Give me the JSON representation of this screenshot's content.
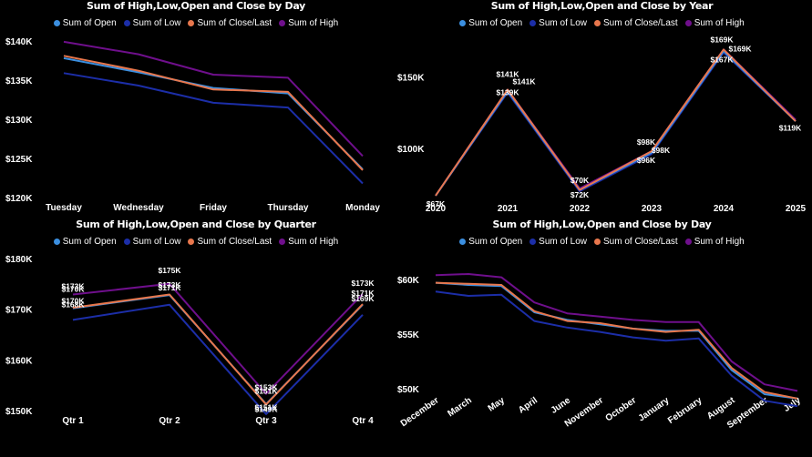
{
  "colors": {
    "open": "#3b8fe0",
    "low": "#1c2ea8",
    "close": "#e8774d",
    "high": "#6f0f8c"
  },
  "chart_data": [
    {
      "type": "line",
      "title": "Sum of High,Low,Open and Close by Day",
      "categories": [
        "Tuesday",
        "Wednesday",
        "Friday",
        "Thursday",
        "Monday"
      ],
      "y_ticks": [
        "$140K",
        "$135K",
        "$130K",
        "$125K",
        "$120K"
      ],
      "y_tick_values": [
        140000,
        135000,
        130000,
        125000,
        120000
      ],
      "ylim": [
        120000,
        140000
      ],
      "series": [
        {
          "name": "Sum of Open",
          "key": "open",
          "values": [
            137800,
            136000,
            134000,
            133300,
            123600
          ]
        },
        {
          "name": "Sum of Low",
          "key": "low",
          "values": [
            135900,
            134300,
            132100,
            131500,
            121800
          ]
        },
        {
          "name": "Sum of Close/Last",
          "key": "close",
          "values": [
            138100,
            136200,
            133800,
            133500,
            123500
          ]
        },
        {
          "name": "Sum of High",
          "key": "high",
          "values": [
            139900,
            138300,
            135700,
            135300,
            125300
          ]
        }
      ]
    },
    {
      "type": "line",
      "title": "Sum of High,Low,Open and Close by Year",
      "categories": [
        "2020",
        "2021",
        "2022",
        "2023",
        "2024",
        "2025"
      ],
      "y_ticks": [
        "$150K",
        "$100K"
      ],
      "y_tick_values": [
        150000,
        100000
      ],
      "ylim": [
        65000,
        175000
      ],
      "series": [
        {
          "name": "Sum of Open",
          "key": "open",
          "values": [
            67000,
            140000,
            71000,
            97000,
            168000,
            119000
          ]
        },
        {
          "name": "Sum of Low",
          "key": "low",
          "values": [
            67000,
            139000,
            70000,
            96000,
            167000,
            119000
          ]
        },
        {
          "name": "Sum of Close/Last",
          "key": "close",
          "values": [
            67000,
            141000,
            71000,
            98000,
            169000,
            119000
          ]
        },
        {
          "name": "Sum of High",
          "key": "high",
          "values": [
            67000,
            141000,
            72000,
            98000,
            169000,
            120000
          ]
        }
      ],
      "annotations": [
        {
          "index": 0,
          "text": "$67K",
          "dx": 0,
          "dy": 12
        },
        {
          "index": 1,
          "text": "$141K",
          "dx": 0,
          "dy": -14
        },
        {
          "index": 1,
          "text": "$141K",
          "dx": 18,
          "dy": -6
        },
        {
          "index": 1,
          "text": "$139K",
          "dx": 0,
          "dy": 6
        },
        {
          "index": 2,
          "text": "$70K",
          "dx": 0,
          "dy": -6
        },
        {
          "index": 2,
          "text": "$72K",
          "dx": 0,
          "dy": 10
        },
        {
          "index": 3,
          "text": "$98K",
          "dx": -6,
          "dy": -7
        },
        {
          "index": 3,
          "text": "$98K",
          "dx": 10,
          "dy": 2
        },
        {
          "index": 3,
          "text": "$96K",
          "dx": -6,
          "dy": 13
        },
        {
          "index": 4,
          "text": "$169K",
          "dx": -2,
          "dy": -8
        },
        {
          "index": 4,
          "text": "$169K",
          "dx": 18,
          "dy": 2
        },
        {
          "index": 4,
          "text": "$167K",
          "dx": -2,
          "dy": 14
        },
        {
          "index": 5,
          "text": "$119K",
          "dx": -6,
          "dy": 12
        }
      ]
    },
    {
      "type": "line",
      "title": "Sum of High,Low,Open and Close by Quarter",
      "categories": [
        "Qtr 1",
        "Qtr 2",
        "Qtr 3",
        "Qtr 4"
      ],
      "y_ticks": [
        "$180K",
        "$170K",
        "$160K",
        "$150K"
      ],
      "y_tick_values": [
        180000,
        170000,
        160000,
        150000
      ],
      "ylim": [
        150000,
        180000
      ],
      "series": [
        {
          "name": "Sum of Open",
          "key": "open",
          "values": [
            170200,
            172800,
            151300,
            170900
          ]
        },
        {
          "name": "Sum of Low",
          "key": "low",
          "values": [
            167900,
            170900,
            149300,
            168900
          ]
        },
        {
          "name": "Sum of Close/Last",
          "key": "close",
          "values": [
            170300,
            172900,
            151200,
            171000
          ]
        },
        {
          "name": "Sum of High",
          "key": "high",
          "values": [
            172900,
            175000,
            153300,
            173000
          ]
        }
      ],
      "annotations": [
        {
          "index": 0,
          "text": "$173K",
          "dx": 0,
          "dy": -6
        },
        {
          "index": 0,
          "text": "$170K",
          "dx": 0,
          "dy": -3
        },
        {
          "index": 0,
          "text": "$170K",
          "dx": 0,
          "dy": 10
        },
        {
          "index": 0,
          "text": "$168K",
          "dx": 0,
          "dy": 14
        },
        {
          "index": 1,
          "text": "$175K",
          "dx": 0,
          "dy": -12
        },
        {
          "index": 1,
          "text": "$173K",
          "dx": 0,
          "dy": 4
        },
        {
          "index": 1,
          "text": "$171K",
          "dx": 0,
          "dy": 7
        },
        {
          "index": 2,
          "text": "$153K",
          "dx": 0,
          "dy": -4
        },
        {
          "index": 2,
          "text": "$151K",
          "dx": 0,
          "dy": 0
        },
        {
          "index": 2,
          "text": "$151K",
          "dx": 0,
          "dy": 18
        },
        {
          "index": 2,
          "text": "$149K",
          "dx": 0,
          "dy": 20
        },
        {
          "index": 3,
          "text": "$173K",
          "dx": 0,
          "dy": -9
        },
        {
          "index": 3,
          "text": "$171K",
          "dx": 0,
          "dy": 2
        },
        {
          "index": 3,
          "text": "$169K",
          "dx": 0,
          "dy": 8
        }
      ]
    },
    {
      "type": "line",
      "title": "Sum of High,Low,Open and Close by Day",
      "categories": [
        "December",
        "March",
        "May",
        "April",
        "June",
        "November",
        "October",
        "January",
        "February",
        "August",
        "September",
        "July"
      ],
      "y_ticks": [
        "$60K",
        "$55K",
        "$50K"
      ],
      "y_tick_values": [
        60000,
        55000,
        50000
      ],
      "ylim": [
        50000,
        60000
      ],
      "series": [
        {
          "name": "Sum of Open",
          "key": "open",
          "values": [
            59700,
            59500,
            59400,
            57000,
            56300,
            55900,
            55500,
            55300,
            55300,
            51700,
            49500,
            49100
          ]
        },
        {
          "name": "Sum of Low",
          "key": "low",
          "values": [
            58900,
            58500,
            58600,
            56200,
            55600,
            55200,
            54700,
            54400,
            54600,
            51200,
            48900,
            48400
          ]
        },
        {
          "name": "Sum of Close/Last",
          "key": "close",
          "values": [
            59700,
            59600,
            59500,
            57100,
            56200,
            56000,
            55500,
            55200,
            55400,
            51900,
            49700,
            49100
          ]
        },
        {
          "name": "Sum of High",
          "key": "high",
          "values": [
            60400,
            60500,
            60200,
            57900,
            56900,
            56600,
            56300,
            56100,
            56100,
            52500,
            50400,
            49800
          ]
        }
      ]
    }
  ]
}
